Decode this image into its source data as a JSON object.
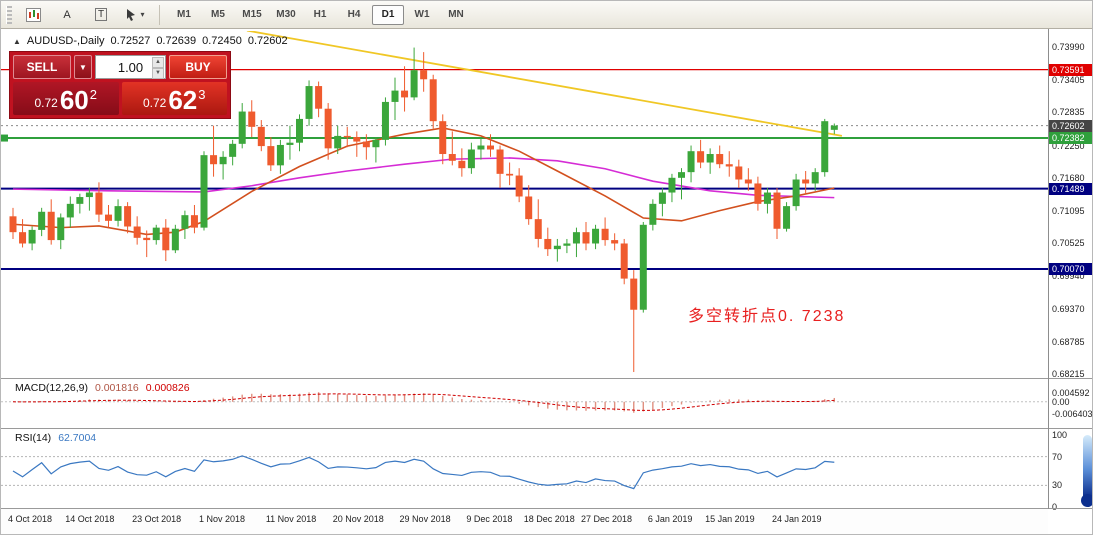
{
  "toolbar": {
    "tool_a_label": "A",
    "tool_t_label": "T",
    "timeframes": [
      "M1",
      "M5",
      "M15",
      "M30",
      "H1",
      "H4",
      "D1",
      "W1",
      "MN"
    ],
    "selected_timeframe": "D1"
  },
  "info_line": {
    "symbol_period": "AUDUSD-,Daily",
    "open": "0.72527",
    "high": "0.72639",
    "low": "0.72450",
    "close": "0.72602"
  },
  "trade_panel": {
    "sell_label": "SELL",
    "buy_label": "BUY",
    "volume": "1.00",
    "sell_price": {
      "prefix": "0.72",
      "big": "60",
      "sup": "2"
    },
    "buy_price": {
      "prefix": "0.72",
      "big": "62",
      "sup": "3"
    }
  },
  "annotation": {
    "text": "多空转折点0. 7238",
    "color": "#e82020"
  },
  "indicators": {
    "macd": {
      "title": "MACD(12,26,9)",
      "value1": "0.001816",
      "value2": "0.000826",
      "axis_max_label": "0.004592",
      "axis_zero_label": "0.00",
      "axis_min_label": "-0.006403",
      "axis_max": 0.004592,
      "axis_min": -0.006403
    },
    "rsi": {
      "title": "RSI(14)",
      "value": "62.7004",
      "levels": [
        70,
        30
      ],
      "axis_labels": [
        100,
        70,
        30,
        0
      ]
    }
  },
  "chart_data": {
    "type": "candlestick",
    "symbol": "AUDUSD-",
    "period": "Daily",
    "up_color": "#3ba63b",
    "down_color": "#ef5b2e",
    "price_ticks": [
      "0.73990",
      "0.73405",
      "0.72835",
      "0.72250",
      "0.71680",
      "0.71095",
      "0.70525",
      "0.69940",
      "0.69370",
      "0.68785",
      "0.68215"
    ],
    "hlines": [
      {
        "price": 0.73591,
        "label": "0.73591",
        "color": "#e00000",
        "width": 1.3
      },
      {
        "price": 0.72382,
        "label": "0.72382",
        "color": "#2fa03c",
        "width": 2
      },
      {
        "price": 0.71489,
        "label": "0.71489",
        "color": "#000080",
        "width": 2
      },
      {
        "price": 0.7007,
        "label": "0.70070",
        "color": "#000080",
        "width": 2
      }
    ],
    "current_price": {
      "price": 0.72602,
      "label": "0.72602",
      "tag_bg": "#454545"
    },
    "trendline": {
      "color": "#f0c725",
      "i1": 24.5,
      "p1": 0.7428,
      "i2": 86.8,
      "p2": 0.7242
    },
    "ma_fast": {
      "color": "#d2501e",
      "points": [
        [
          0,
          0.7086
        ],
        [
          5,
          0.708
        ],
        [
          9,
          0.7083
        ],
        [
          14,
          0.7068
        ],
        [
          17,
          0.7072
        ],
        [
          20,
          0.7091
        ],
        [
          25,
          0.7144
        ],
        [
          30,
          0.7188
        ],
        [
          35,
          0.7224
        ],
        [
          41,
          0.7245
        ],
        [
          45,
          0.7256
        ],
        [
          49,
          0.7242
        ],
        [
          53,
          0.7215
        ],
        [
          57,
          0.718
        ],
        [
          62,
          0.7136
        ],
        [
          66,
          0.7097
        ],
        [
          70,
          0.7092
        ],
        [
          74,
          0.711
        ],
        [
          78,
          0.7126
        ],
        [
          82,
          0.7136
        ],
        [
          86,
          0.715
        ]
      ]
    },
    "ma_slow": {
      "color": "#d52cd5",
      "points": [
        [
          0,
          0.7148
        ],
        [
          10,
          0.7145
        ],
        [
          20,
          0.7143
        ],
        [
          25,
          0.7154
        ],
        [
          30,
          0.7168
        ],
        [
          35,
          0.718
        ],
        [
          41,
          0.7192
        ],
        [
          46,
          0.7201
        ],
        [
          52,
          0.7203
        ],
        [
          57,
          0.7198
        ],
        [
          62,
          0.7184
        ],
        [
          67,
          0.7162
        ],
        [
          73,
          0.7145
        ],
        [
          78,
          0.7137
        ],
        [
          86,
          0.7133
        ]
      ]
    },
    "xticks": [
      {
        "i": 0,
        "label": "4 Oct 2018"
      },
      {
        "i": 6,
        "label": "14 Oct 2018"
      },
      {
        "i": 13,
        "label": "23 Oct 2018"
      },
      {
        "i": 20,
        "label": "1 Nov 2018"
      },
      {
        "i": 27,
        "label": "11 Nov 2018"
      },
      {
        "i": 34,
        "label": "20 Nov 2018"
      },
      {
        "i": 41,
        "label": "29 Nov 2018"
      },
      {
        "i": 48,
        "label": "9 Dec 2018"
      },
      {
        "i": 54,
        "label": "18 Dec 2018"
      },
      {
        "i": 60,
        "label": "27 Dec 2018"
      },
      {
        "i": 67,
        "label": "6 Jan 2019"
      },
      {
        "i": 73,
        "label": "15 Jan 2019"
      },
      {
        "i": 80,
        "label": "24 Jan 2019"
      }
    ],
    "candles": [
      [
        0.71,
        0.7115,
        0.706,
        0.7072
      ],
      [
        0.7072,
        0.7095,
        0.7045,
        0.7052
      ],
      [
        0.7052,
        0.7082,
        0.704,
        0.7076
      ],
      [
        0.7076,
        0.7115,
        0.7065,
        0.7108
      ],
      [
        0.7108,
        0.713,
        0.705,
        0.7058
      ],
      [
        0.7058,
        0.7105,
        0.7042,
        0.7098
      ],
      [
        0.7098,
        0.7135,
        0.708,
        0.7122
      ],
      [
        0.7122,
        0.714,
        0.7105,
        0.7134
      ],
      [
        0.7134,
        0.715,
        0.711,
        0.7142
      ],
      [
        0.7142,
        0.716,
        0.709,
        0.7103
      ],
      [
        0.7103,
        0.712,
        0.708,
        0.7092
      ],
      [
        0.7092,
        0.713,
        0.7082,
        0.7118
      ],
      [
        0.7118,
        0.7125,
        0.707,
        0.7082
      ],
      [
        0.7082,
        0.71,
        0.705,
        0.7062
      ],
      [
        0.7062,
        0.7075,
        0.7028,
        0.7058
      ],
      [
        0.7058,
        0.7085,
        0.705,
        0.708
      ],
      [
        0.708,
        0.7095,
        0.7021,
        0.704
      ],
      [
        0.704,
        0.7085,
        0.7035,
        0.7078
      ],
      [
        0.7078,
        0.711,
        0.706,
        0.7102
      ],
      [
        0.7102,
        0.712,
        0.707,
        0.708
      ],
      [
        0.708,
        0.7215,
        0.7075,
        0.7208
      ],
      [
        0.7208,
        0.726,
        0.717,
        0.7192
      ],
      [
        0.7192,
        0.7215,
        0.7165,
        0.7205
      ],
      [
        0.7205,
        0.7235,
        0.719,
        0.7228
      ],
      [
        0.7228,
        0.73,
        0.722,
        0.7285
      ],
      [
        0.7285,
        0.7305,
        0.724,
        0.7258
      ],
      [
        0.7258,
        0.727,
        0.7215,
        0.7224
      ],
      [
        0.7224,
        0.724,
        0.718,
        0.719
      ],
      [
        0.719,
        0.7235,
        0.7175,
        0.7226
      ],
      [
        0.7226,
        0.726,
        0.72,
        0.723
      ],
      [
        0.723,
        0.728,
        0.7215,
        0.7272
      ],
      [
        0.7272,
        0.734,
        0.726,
        0.733
      ],
      [
        0.733,
        0.7338,
        0.7275,
        0.729
      ],
      [
        0.729,
        0.73,
        0.72,
        0.722
      ],
      [
        0.722,
        0.726,
        0.721,
        0.7242
      ],
      [
        0.7242,
        0.7258,
        0.7222,
        0.724
      ],
      [
        0.724,
        0.725,
        0.7205,
        0.7232
      ],
      [
        0.7232,
        0.7245,
        0.72,
        0.7222
      ],
      [
        0.7222,
        0.724,
        0.7195,
        0.7235
      ],
      [
        0.7235,
        0.731,
        0.7225,
        0.7302
      ],
      [
        0.7302,
        0.7345,
        0.727,
        0.7322
      ],
      [
        0.7322,
        0.7365,
        0.7285,
        0.731
      ],
      [
        0.731,
        0.7398,
        0.7305,
        0.7358
      ],
      [
        0.7358,
        0.739,
        0.732,
        0.7342
      ],
      [
        0.7342,
        0.735,
        0.7255,
        0.7268
      ],
      [
        0.7268,
        0.728,
        0.7192,
        0.721
      ],
      [
        0.721,
        0.725,
        0.719,
        0.7198
      ],
      [
        0.7198,
        0.722,
        0.717,
        0.7185
      ],
      [
        0.7185,
        0.723,
        0.7175,
        0.7218
      ],
      [
        0.7218,
        0.724,
        0.72,
        0.7225
      ],
      [
        0.7225,
        0.7245,
        0.7205,
        0.7218
      ],
      [
        0.7218,
        0.7225,
        0.715,
        0.7175
      ],
      [
        0.7175,
        0.7195,
        0.7155,
        0.7172
      ],
      [
        0.7172,
        0.7185,
        0.7125,
        0.7135
      ],
      [
        0.7135,
        0.7155,
        0.7085,
        0.7095
      ],
      [
        0.7095,
        0.713,
        0.7045,
        0.706
      ],
      [
        0.706,
        0.708,
        0.703,
        0.7042
      ],
      [
        0.7042,
        0.706,
        0.702,
        0.7048
      ],
      [
        0.7048,
        0.706,
        0.7035,
        0.7052
      ],
      [
        0.7052,
        0.708,
        0.7028,
        0.7072
      ],
      [
        0.7072,
        0.709,
        0.704,
        0.7052
      ],
      [
        0.7052,
        0.7085,
        0.7042,
        0.7078
      ],
      [
        0.7078,
        0.7098,
        0.7048,
        0.7058
      ],
      [
        0.7058,
        0.707,
        0.704,
        0.7052
      ],
      [
        0.7052,
        0.706,
        0.698,
        0.699
      ],
      [
        0.699,
        0.7005,
        0.6825,
        0.6935
      ],
      [
        0.6935,
        0.709,
        0.693,
        0.7085
      ],
      [
        0.7085,
        0.713,
        0.7075,
        0.7122
      ],
      [
        0.7122,
        0.715,
        0.71,
        0.7142
      ],
      [
        0.7142,
        0.7175,
        0.7125,
        0.7168
      ],
      [
        0.7168,
        0.7185,
        0.713,
        0.7178
      ],
      [
        0.7178,
        0.7225,
        0.716,
        0.7215
      ],
      [
        0.7215,
        0.7235,
        0.7185,
        0.7195
      ],
      [
        0.7195,
        0.722,
        0.7175,
        0.721
      ],
      [
        0.721,
        0.7225,
        0.7185,
        0.7192
      ],
      [
        0.7192,
        0.7215,
        0.717,
        0.7188
      ],
      [
        0.7188,
        0.72,
        0.715,
        0.7165
      ],
      [
        0.7165,
        0.7185,
        0.7145,
        0.7158
      ],
      [
        0.7158,
        0.717,
        0.711,
        0.7122
      ],
      [
        0.7122,
        0.715,
        0.7105,
        0.7142
      ],
      [
        0.7142,
        0.715,
        0.706,
        0.7078
      ],
      [
        0.7078,
        0.7125,
        0.7073,
        0.7118
      ],
      [
        0.7118,
        0.7175,
        0.711,
        0.7165
      ],
      [
        0.7165,
        0.718,
        0.714,
        0.7158
      ],
      [
        0.7158,
        0.7185,
        0.7145,
        0.7178
      ],
      [
        0.7178,
        0.7272,
        0.717,
        0.7268
      ],
      [
        0.72527,
        0.72639,
        0.7245,
        0.72602
      ]
    ]
  }
}
